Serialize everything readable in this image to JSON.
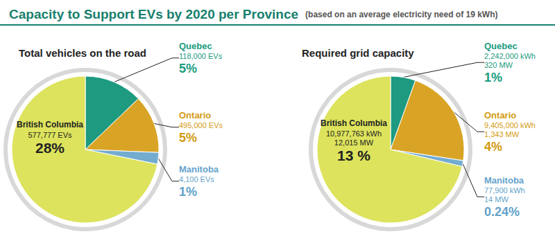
{
  "title": "Capacity to Support EVs by 2020 per Province",
  "subtitle": "(based on an average electricity need of 19 kWh)",
  "chart_data": [
    {
      "type": "pie",
      "title": "Total vehicles on the road",
      "categories": [
        "Quebec",
        "Ontario",
        "Manitoba",
        "British Columbia"
      ],
      "values": [
        5,
        5,
        1,
        28
      ],
      "value_labels": [
        "5%",
        "5%",
        "1%",
        "28%"
      ],
      "detail_labels": [
        [
          "118,000 EVs"
        ],
        [
          "495,000 EVs"
        ],
        [
          "4,100 EVs"
        ],
        [
          "577,777 EVs"
        ]
      ],
      "colors": [
        "#1d9a80",
        "#d9a425",
        "#74acd0",
        "#dde35c"
      ],
      "data_labels": true
    },
    {
      "type": "pie",
      "title": "Required grid capacity",
      "categories": [
        "Quebec",
        "Ontario",
        "Manitoba",
        "British Columbia"
      ],
      "values": [
        1,
        4,
        0.24,
        13
      ],
      "value_labels": [
        "1%",
        "4%",
        "0.24%",
        "13 %"
      ],
      "detail_labels": [
        [
          "2,242,000 kWh",
          "320 MW"
        ],
        [
          "9,405,000 kWh",
          "1,343 MW"
        ],
        [
          "77,900 kWh",
          "14 MW"
        ],
        [
          "10,977,763 kWh",
          "12,015 MW"
        ]
      ],
      "colors": [
        "#1d9a80",
        "#d9a425",
        "#74acd0",
        "#dde35c"
      ],
      "data_labels": true
    }
  ]
}
